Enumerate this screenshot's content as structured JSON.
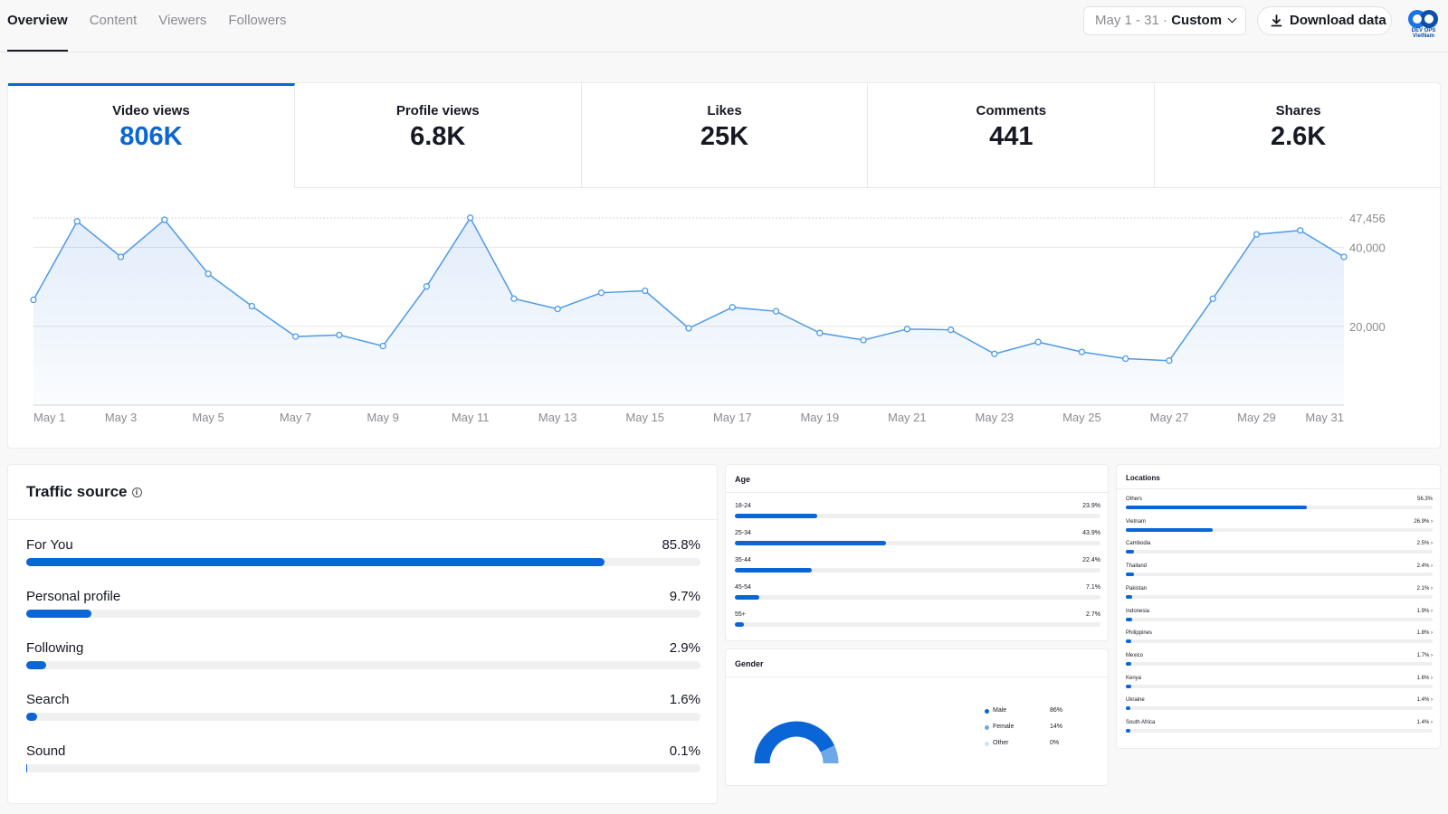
{
  "nav": {
    "tabs": [
      "Overview",
      "Content",
      "Viewers",
      "Followers"
    ],
    "active_tab": "Overview"
  },
  "date_picker": {
    "range": "May 1 - 31 · ",
    "mode": "Custom"
  },
  "download": {
    "label": "Download data"
  },
  "logo": {
    "text": "DEV OPS VietNam"
  },
  "metrics": [
    {
      "label": "Video views",
      "value": "806K"
    },
    {
      "label": "Profile views",
      "value": "6.8K"
    },
    {
      "label": "Likes",
      "value": "25K"
    },
    {
      "label": "Comments",
      "value": "441"
    },
    {
      "label": "Shares",
      "value": "2.6K"
    }
  ],
  "colors": {
    "accent": "#0a66d6",
    "gender_male": "#0a66d6",
    "gender_female": "#6fa8e8",
    "gender_other": "#cfe2f8"
  },
  "chart_data": {
    "type": "area",
    "x": [
      "May 1",
      "May 2",
      "May 3",
      "May 4",
      "May 5",
      "May 6",
      "May 7",
      "May 8",
      "May 9",
      "May 10",
      "May 11",
      "May 12",
      "May 13",
      "May 14",
      "May 15",
      "May 16",
      "May 17",
      "May 18",
      "May 19",
      "May 20",
      "May 21",
      "May 22",
      "May 23",
      "May 24",
      "May 25",
      "May 26",
      "May 27",
      "May 28",
      "May 29",
      "May 30",
      "May 31"
    ],
    "xticks": [
      "May 1",
      "May 3",
      "May 5",
      "May 7",
      "May 9",
      "May 11",
      "May 13",
      "May 15",
      "May 17",
      "May 19",
      "May 21",
      "May 23",
      "May 25",
      "May 27",
      "May 29",
      "May 31"
    ],
    "series": [
      {
        "values": [
          26700,
          46600,
          37600,
          47000,
          33300,
          25100,
          17400,
          17800,
          15000,
          30100,
          47500,
          27000,
          24400,
          28500,
          29000,
          19500,
          24800,
          23800,
          18300,
          16500,
          19300,
          19100,
          13000,
          16000,
          13500,
          11800,
          11300,
          27000,
          43300,
          44300,
          37600
        ]
      }
    ],
    "yticks": [
      "47,456",
      "40,000",
      "20,000"
    ],
    "ylim": [
      0,
      47456
    ],
    "grid": true
  },
  "traffic_source": {
    "title": "Traffic source",
    "items": [
      {
        "name": "For You",
        "pct": "85.8%",
        "value": 85.8
      },
      {
        "name": "Personal profile",
        "pct": "9.7%",
        "value": 9.7
      },
      {
        "name": "Following",
        "pct": "2.9%",
        "value": 2.9
      },
      {
        "name": "Search",
        "pct": "1.6%",
        "value": 1.6
      },
      {
        "name": "Sound",
        "pct": "0.1%",
        "value": 0.1
      }
    ]
  },
  "age": {
    "title": "Age",
    "items": [
      {
        "name": "18-24",
        "pct": "23.9%",
        "value": 23.9
      },
      {
        "name": "25-34",
        "pct": "43.9%",
        "value": 43.9
      },
      {
        "name": "35-44",
        "pct": "22.4%",
        "value": 22.4
      },
      {
        "name": "45-54",
        "pct": "7.1%",
        "value": 7.1
      },
      {
        "name": "55+",
        "pct": "2.7%",
        "value": 2.7
      }
    ]
  },
  "gender": {
    "title": "Gender",
    "items": [
      {
        "name": "Male",
        "pct": "86%",
        "value": 86
      },
      {
        "name": "Female",
        "pct": "14%",
        "value": 14
      },
      {
        "name": "Other",
        "pct": "0%",
        "value": 0
      }
    ]
  },
  "locations": {
    "title": "Locations",
    "items": [
      {
        "name": "Others",
        "pct": "56.3%",
        "value": 56.3,
        "arrow": false
      },
      {
        "name": "Vietnam",
        "pct": "26.9%",
        "value": 26.9,
        "arrow": true
      },
      {
        "name": "Cambodia",
        "pct": "2.5%",
        "value": 2.5,
        "arrow": true
      },
      {
        "name": "Thailand",
        "pct": "2.4%",
        "value": 2.4,
        "arrow": true
      },
      {
        "name": "Pakistan",
        "pct": "2.1%",
        "value": 2.1,
        "arrow": true
      },
      {
        "name": "Indonesia",
        "pct": "1.9%",
        "value": 1.9,
        "arrow": true
      },
      {
        "name": "Philippines",
        "pct": "1.8%",
        "value": 1.8,
        "arrow": true
      },
      {
        "name": "Mexico",
        "pct": "1.7%",
        "value": 1.7,
        "arrow": true
      },
      {
        "name": "Kenya",
        "pct": "1.6%",
        "value": 1.6,
        "arrow": true
      },
      {
        "name": "Ukraine",
        "pct": "1.4%",
        "value": 1.4,
        "arrow": true
      },
      {
        "name": "South Africa",
        "pct": "1.4%",
        "value": 1.4,
        "arrow": true
      }
    ]
  }
}
